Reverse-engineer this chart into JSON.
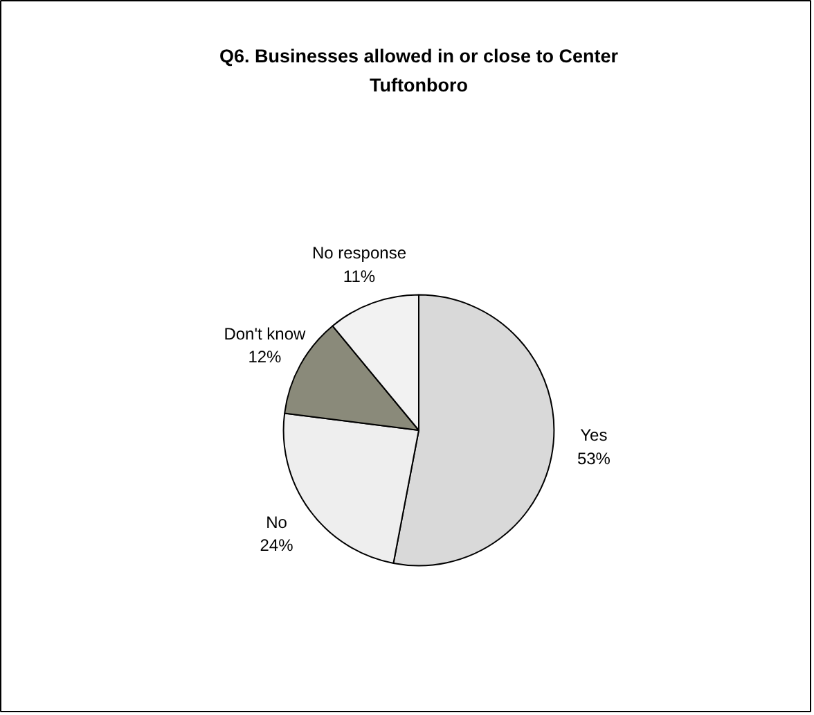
{
  "chart_data": {
    "type": "pie",
    "title": "Q6. Businesses allowed in or close to Center Tuftonboro",
    "categories": [
      "Yes",
      "No",
      "Don't know",
      "No response"
    ],
    "values": [
      53,
      24,
      12,
      11
    ],
    "colors": [
      "#d9d9d9",
      "#eeeeee",
      "#8a8a7a",
      "#f2f2f2"
    ],
    "value_labels": [
      "53%",
      "24%",
      "12%",
      "11%"
    ]
  }
}
